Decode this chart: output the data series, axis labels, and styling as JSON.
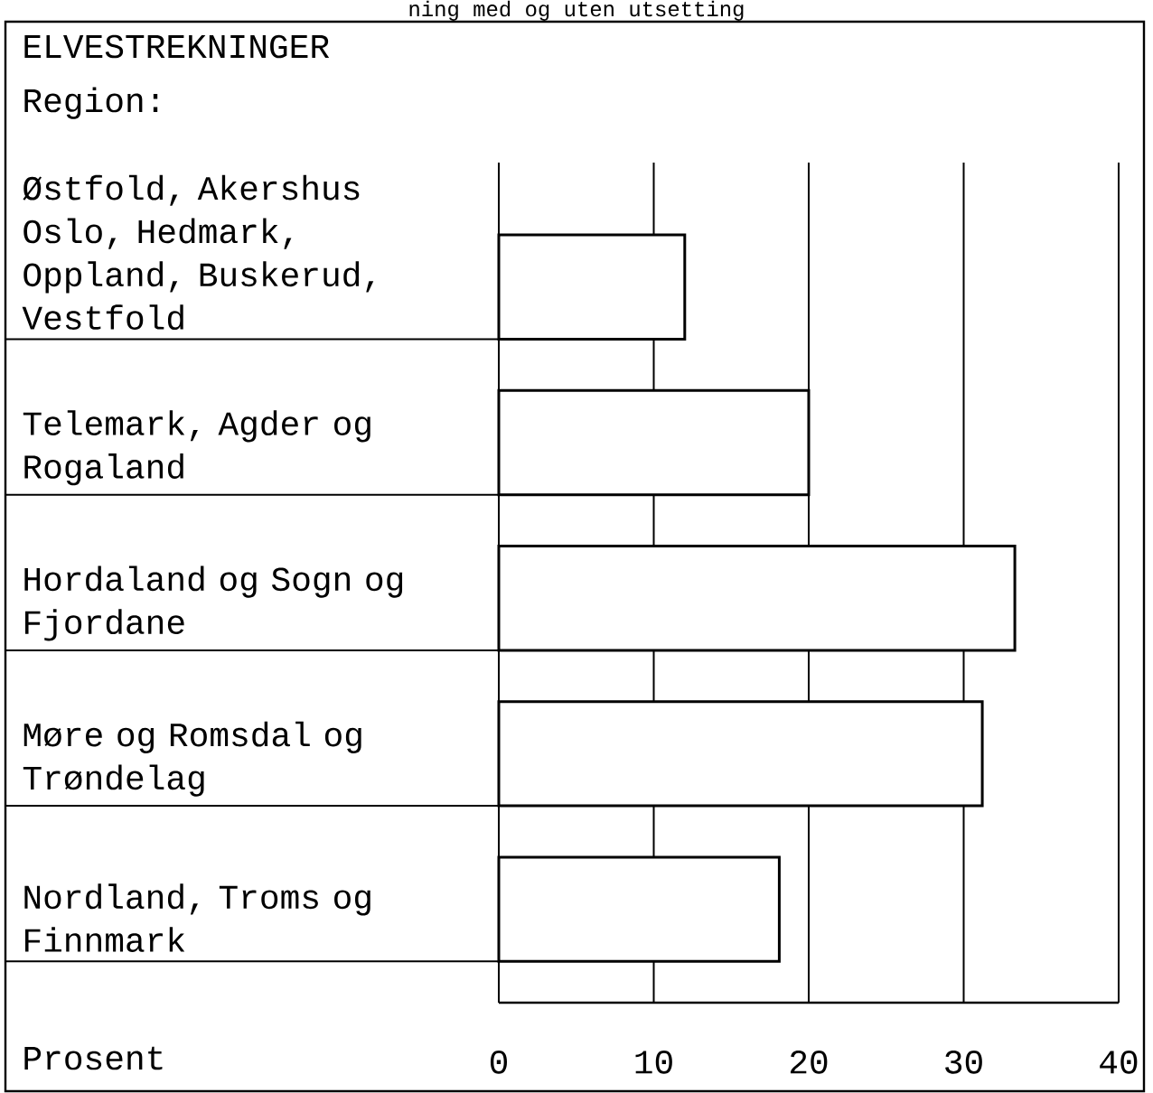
{
  "chart_data": {
    "type": "bar",
    "orientation": "horizontal",
    "title": "ELVESTREKNINGER",
    "ylabel": "Region:",
    "xlabel": "Prosent",
    "annotations": [
      "ning med og uten utsetting"
    ],
    "categories": [
      "Østfold, Akershus Oslo, Hedmark, Oppland, Buskerud, Vestfold",
      "Telemark, Agder og Rogaland",
      "Hordaland og Sogn og Fjordane",
      "Møre og Romsdal og Trøndelag",
      "Nordland, Troms og Finnmark"
    ],
    "values": [
      12,
      20,
      33.3,
      31.2,
      18.1
    ],
    "color": "#000000",
    "xlim": [
      0,
      40
    ],
    "xticks": [
      0,
      10,
      20,
      30,
      40
    ],
    "grid": "x"
  }
}
